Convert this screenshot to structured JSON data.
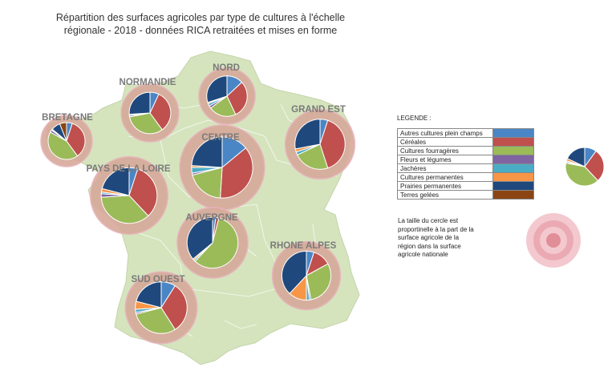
{
  "title_lines": [
    "Répartition des surfaces agricoles par type de cultures à l'échelle",
    "régionale - 2018 - données RICA retraitées et mises en forme"
  ],
  "legend": {
    "title": "LEGENDE :",
    "items": [
      {
        "label": "Autres cultures plein champs",
        "color": "#4a86c5"
      },
      {
        "label": "Céréales",
        "color": "#c0504d"
      },
      {
        "label": "Cultures fourragères",
        "color": "#9bbb59"
      },
      {
        "label": "Fleurs et légumes",
        "color": "#8064a2"
      },
      {
        "label": "Jachères",
        "color": "#4bacc6"
      },
      {
        "label": "Cultures permanentes",
        "color": "#f79646"
      },
      {
        "label": "Prairies permanentes",
        "color": "#1f497d"
      },
      {
        "label": "Terres gelées",
        "color": "#8b4513"
      }
    ],
    "example_pie": [
      0.1,
      0.28,
      0.4,
      0.01,
      0.01,
      0.02,
      0.18,
      0.0
    ]
  },
  "size_note": "La taille du cercle est proportinelle à la part de la surface agricole de la région dans la surface agricole nationale",
  "chart_data": {
    "type": "pie",
    "categories": [
      "Autres cultures plein champs",
      "Céréales",
      "Cultures fourragères",
      "Fleurs et légumes",
      "Jachères",
      "Cultures permanentes",
      "Prairies permanentes",
      "Terres gelées"
    ],
    "regions": [
      {
        "name": "NORD",
        "share": 0.06,
        "values": [
          0.13,
          0.3,
          0.22,
          0.02,
          0.02,
          0.01,
          0.3,
          0.0
        ]
      },
      {
        "name": "NORMANDIE",
        "share": 0.063,
        "values": [
          0.07,
          0.33,
          0.32,
          0.01,
          0.01,
          0.0,
          0.26,
          0.0
        ]
      },
      {
        "name": "BRETAGNE",
        "share": 0.05,
        "values": [
          0.05,
          0.35,
          0.43,
          0.02,
          0.01,
          0.0,
          0.08,
          0.06
        ]
      },
      {
        "name": "GRAND EST",
        "share": 0.092,
        "values": [
          0.05,
          0.4,
          0.23,
          0.0,
          0.02,
          0.02,
          0.28,
          0.0
        ]
      },
      {
        "name": "CENTRE",
        "share": 0.137,
        "values": [
          0.14,
          0.37,
          0.2,
          0.01,
          0.03,
          0.01,
          0.24,
          0.0
        ]
      },
      {
        "name": "PAYS DE LA LOIRE",
        "share": 0.114,
        "values": [
          0.05,
          0.33,
          0.36,
          0.02,
          0.01,
          0.02,
          0.21,
          0.0
        ]
      },
      {
        "name": "AUVERGNE",
        "share": 0.095,
        "values": [
          0.02,
          0.02,
          0.58,
          0.0,
          0.01,
          0.01,
          0.36,
          0.0
        ]
      },
      {
        "name": "RHONE ALPES",
        "share": 0.088,
        "values": [
          0.05,
          0.12,
          0.3,
          0.01,
          0.02,
          0.12,
          0.38,
          0.0
        ]
      },
      {
        "name": "SUD OUEST",
        "share": 0.098,
        "values": [
          0.09,
          0.32,
          0.3,
          0.01,
          0.02,
          0.05,
          0.21,
          0.0
        ]
      }
    ]
  }
}
